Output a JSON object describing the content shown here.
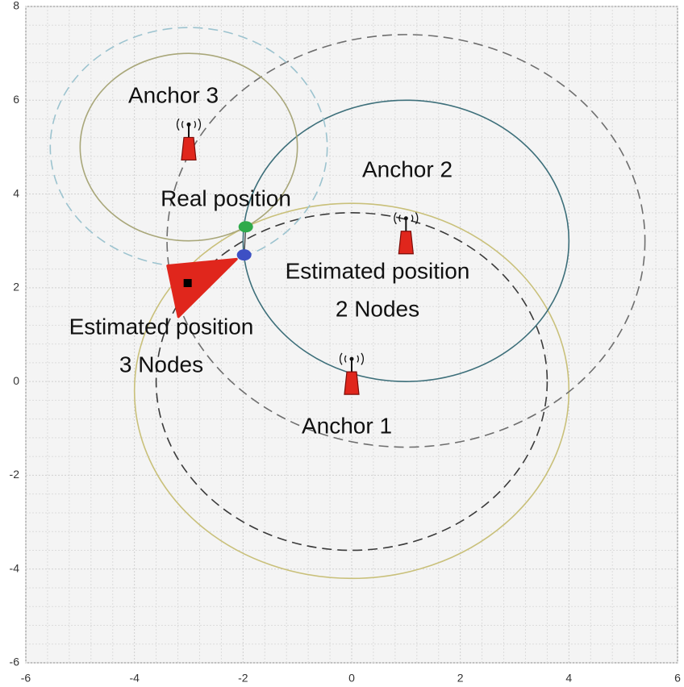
{
  "chart_data": {
    "type": "scatter",
    "xlim": [
      -6,
      6
    ],
    "ylim": [
      -6,
      8
    ],
    "xticks": [
      -6,
      -4,
      -2,
      0,
      2,
      4,
      6
    ],
    "yticks": [
      -6,
      -4,
      -2,
      0,
      2,
      4,
      6,
      8
    ],
    "grid": true,
    "anchors": [
      {
        "name": "Anchor 1",
        "x": 0,
        "y": 0,
        "color": "#e0261c"
      },
      {
        "name": "Anchor 2",
        "x": 1,
        "y": 3,
        "color": "#e0261c"
      },
      {
        "name": "Anchor 3",
        "x": -3,
        "y": 5,
        "color": "#e0261c"
      }
    ],
    "circles": [
      {
        "x": 0,
        "y": -0.2,
        "r": 4,
        "color": "#c9c07a",
        "dashed": false
      },
      {
        "x": 0,
        "y": 0,
        "r": 3.6,
        "color": "#3a3a3a",
        "dashed": true
      },
      {
        "x": 1,
        "y": 3,
        "r": 3,
        "color": "#3d6f7a",
        "dashed": false
      },
      {
        "x": 1,
        "y": 3,
        "r": 4.4,
        "color": "#6e6e6e",
        "dashed": true
      },
      {
        "x": -3,
        "y": 5,
        "r": 2,
        "color": "#a9a77a",
        "dashed": false
      },
      {
        "x": -3,
        "y": 5,
        "r": 2.55,
        "color": "#9cc3cf",
        "dashed": true
      }
    ],
    "points": [
      {
        "label_lines": [
          "Real position"
        ],
        "x": -1.95,
        "y": 3.3,
        "color": "#2eaa4a"
      },
      {
        "label_lines": [
          "Estimated position",
          "2 Nodes"
        ],
        "x": -1.98,
        "y": 2.7,
        "color": "#3d4fc4"
      },
      {
        "label_lines": [
          "Estimated position",
          "3 Nodes"
        ],
        "x": -3.02,
        "y": 2.1,
        "color": "#000000"
      }
    ],
    "error_region": {
      "x": [
        -3.39,
        -2.12,
        -3.19
      ],
      "y": [
        2.47,
        2.61,
        1.38
      ],
      "color": "#e0261c"
    }
  }
}
